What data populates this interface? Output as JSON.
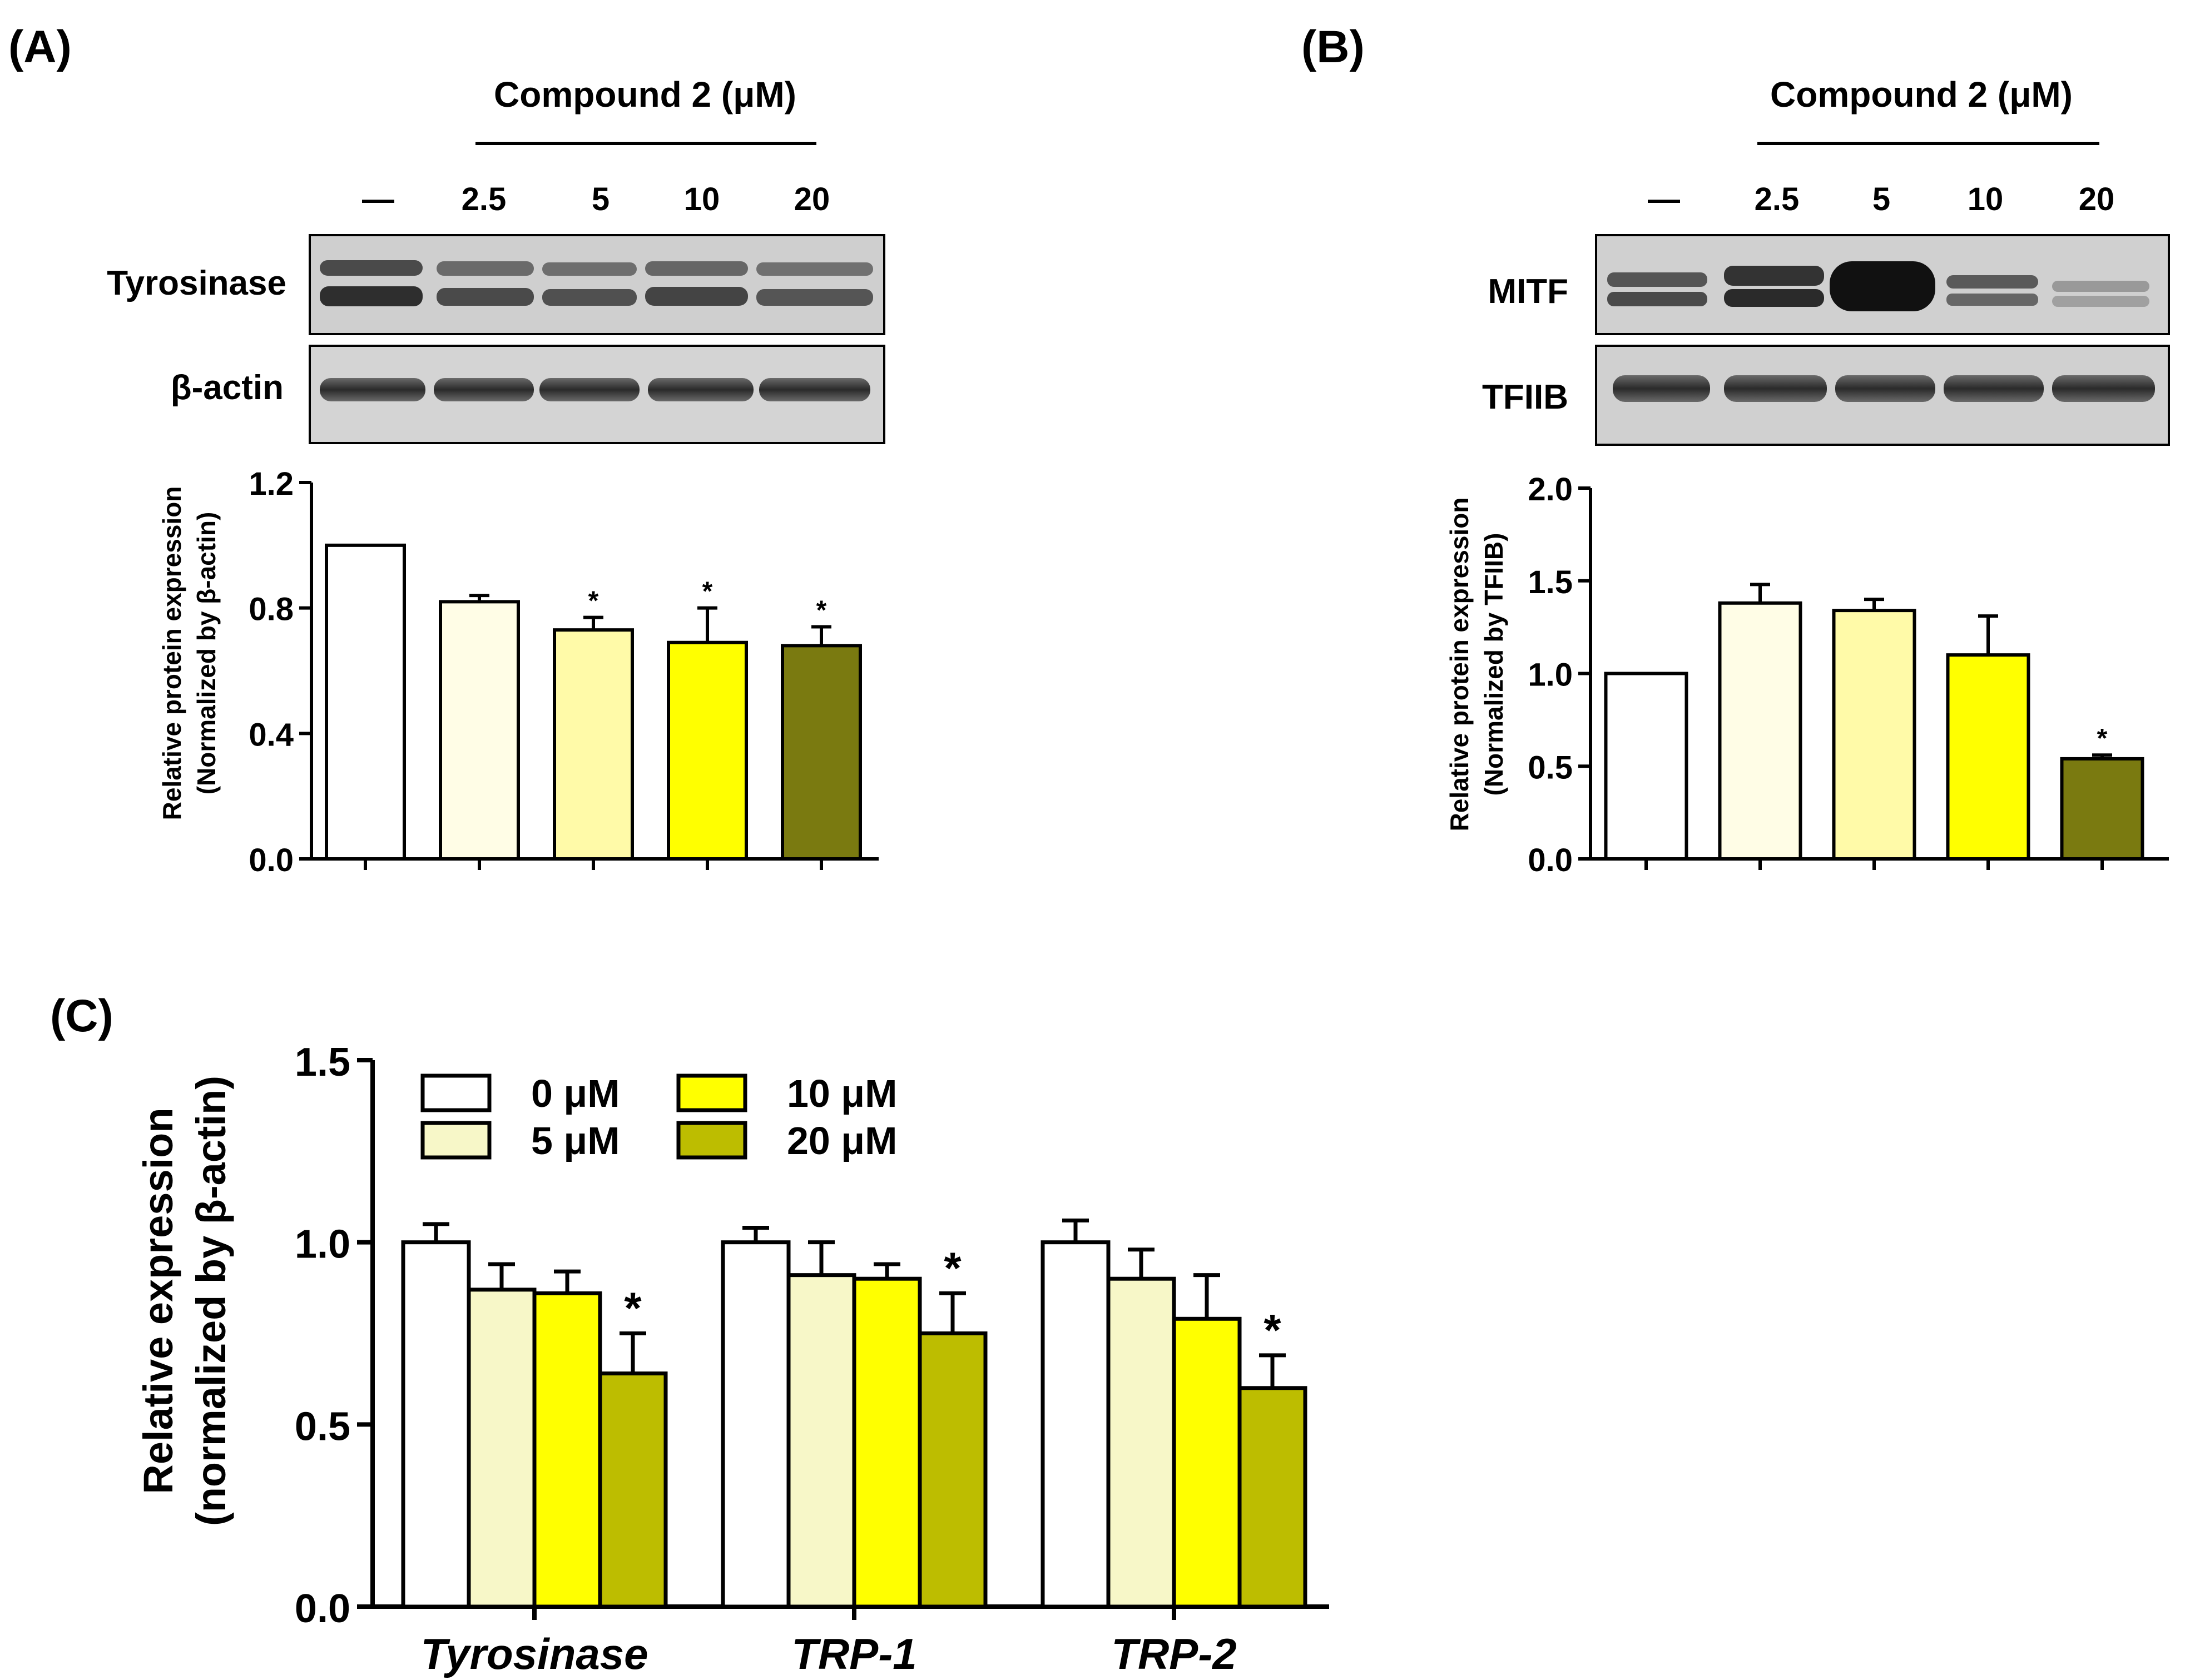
{
  "panels": {
    "A": {
      "label": "(A)",
      "header": "Compound 2 (μM)",
      "lanes": [
        "—",
        "2.5",
        "5",
        "10",
        "20"
      ],
      "blot_labels": [
        "Tyrosinase",
        "β-actin"
      ],
      "ylabel_line1": "Relative protein expression",
      "ylabel_line2": "(Normalized by β-actin)"
    },
    "B": {
      "label": "(B)",
      "header": "Compound 2 (μM)",
      "lanes": [
        "—",
        "2.5",
        "5",
        "10",
        "20"
      ],
      "blot_labels": [
        "MITF",
        "TFIIB"
      ],
      "ylabel_line1": "Relative protein expression",
      "ylabel_line2": "(Normalized by TFIIB)"
    },
    "C": {
      "label": "(C)",
      "ylabel_line1": "Relative expression",
      "ylabel_line2": "(normalized by β-actin)"
    }
  },
  "chart_data": [
    {
      "id": "A",
      "type": "bar",
      "categories": [
        "—",
        "2.5",
        "5",
        "10",
        "20"
      ],
      "series": [
        {
          "name": "Tyrosinase/β-actin",
          "values": [
            1.0,
            0.82,
            0.73,
            0.69,
            0.68
          ],
          "errors": [
            0.0,
            0.02,
            0.04,
            0.11,
            0.06
          ]
        }
      ],
      "significance": [
        "",
        "",
        "*",
        "*",
        "*"
      ],
      "colors": [
        "#ffffff",
        "#fffde6",
        "#fffaa8",
        "#ffff00",
        "#7a7a10"
      ],
      "ylim": [
        0,
        1.2
      ],
      "yticks": [
        "0.0",
        "0.4",
        "0.8",
        "1.2"
      ],
      "ytick_values": [
        0,
        0.4,
        0.8,
        1.2
      ],
      "xlabel": "",
      "ylabel": "Relative protein expression (Normalized by β-actin)"
    },
    {
      "id": "B",
      "type": "bar",
      "categories": [
        "—",
        "2.5",
        "5",
        "10",
        "20"
      ],
      "series": [
        {
          "name": "MITF/TFIIB",
          "values": [
            1.0,
            1.38,
            1.34,
            1.1,
            0.54
          ],
          "errors": [
            0.0,
            0.1,
            0.06,
            0.21,
            0.02
          ]
        }
      ],
      "significance": [
        "",
        "",
        "",
        "",
        "*"
      ],
      "colors": [
        "#ffffff",
        "#fffde6",
        "#fffaa8",
        "#ffff00",
        "#7a7a10"
      ],
      "ylim": [
        0,
        2.0
      ],
      "yticks": [
        "0.0",
        "0.5",
        "1.0",
        "1.5",
        "2.0"
      ],
      "ytick_values": [
        0,
        0.5,
        1.0,
        1.5,
        2.0
      ],
      "xlabel": "",
      "ylabel": "Relative protein expression (Normalized by TFIIB)"
    },
    {
      "id": "C",
      "type": "bar",
      "categories": [
        "Tyrosinase",
        "TRP-1",
        "TRP-2"
      ],
      "series": [
        {
          "name": "0 μM",
          "color": "#ffffff",
          "values": [
            1.0,
            1.0,
            1.0
          ],
          "errors": [
            0.05,
            0.04,
            0.06
          ],
          "significance": [
            "",
            "",
            ""
          ]
        },
        {
          "name": "5 μM",
          "color": "#f7f7c8",
          "values": [
            0.87,
            0.91,
            0.9
          ],
          "errors": [
            0.07,
            0.09,
            0.08
          ],
          "significance": [
            "",
            "",
            ""
          ]
        },
        {
          "name": "10 μM",
          "color": "#ffff00",
          "values": [
            0.86,
            0.9,
            0.79
          ],
          "errors": [
            0.06,
            0.04,
            0.12
          ],
          "significance": [
            "",
            "",
            ""
          ]
        },
        {
          "name": "20 μM",
          "color": "#bdbd00",
          "values": [
            0.64,
            0.75,
            0.6
          ],
          "errors": [
            0.11,
            0.11,
            0.09
          ],
          "significance": [
            "*",
            "*",
            "*"
          ]
        }
      ],
      "ylim": [
        0,
        1.5
      ],
      "yticks": [
        "0.0",
        "0.5",
        "1.0",
        "1.5"
      ],
      "ytick_values": [
        0,
        0.5,
        1.0,
        1.5
      ],
      "xlabel": "",
      "ylabel": "Relative expression (normalized by β-actin)",
      "legend_position": "top-left"
    }
  ]
}
